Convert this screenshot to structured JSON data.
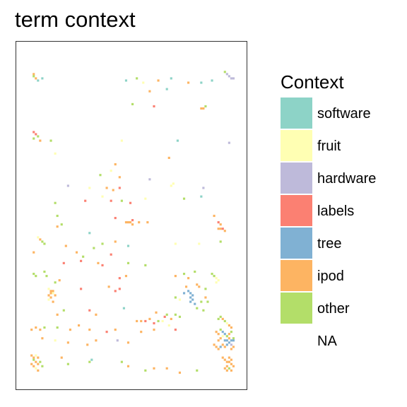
{
  "chart_data": {
    "type": "heatmap",
    "title": "term context",
    "legend": {
      "title": "Context",
      "placement": "right",
      "entries": [
        {
          "label": "software",
          "color": "#8DD3C7"
        },
        {
          "label": "fruit",
          "color": "#FFFFB3"
        },
        {
          "label": "hardware",
          "color": "#BEBADA"
        },
        {
          "label": "labels",
          "color": "#FB8072"
        },
        {
          "label": "tree",
          "color": "#80B1D3"
        },
        {
          "label": "ipod",
          "color": "#FDB462"
        },
        {
          "label": "other",
          "color": "#B3DE69"
        },
        {
          "label": "NA",
          "color": "#FFFFFF"
        }
      ]
    },
    "grid": {
      "columns": 100,
      "rows": 150
    },
    "cells": [
      [
        4,
        7,
        "ipod"
      ],
      [
        4,
        8,
        "other"
      ],
      [
        5,
        9,
        "ipod"
      ],
      [
        6,
        10,
        "software"
      ],
      [
        8,
        9,
        "software"
      ],
      [
        94,
        7,
        "hardware"
      ],
      [
        95,
        8,
        "hardware"
      ],
      [
        96,
        9,
        "hardware"
      ],
      [
        97,
        9,
        "hardware"
      ],
      [
        93,
        6,
        "other"
      ],
      [
        47,
        10,
        "software"
      ],
      [
        52,
        9,
        "other"
      ],
      [
        55,
        11,
        "fruit"
      ],
      [
        62,
        10,
        "ipod"
      ],
      [
        68,
        9,
        "software"
      ],
      [
        76,
        11,
        "ipod"
      ],
      [
        82,
        11,
        "software"
      ],
      [
        87,
        10,
        "software"
      ],
      [
        58,
        15,
        "ipod"
      ],
      [
        66,
        14,
        "software"
      ],
      [
        50,
        21,
        "other"
      ],
      [
        60,
        22,
        "labels"
      ],
      [
        82,
        23,
        "ipod"
      ],
      [
        83,
        23,
        "ipod"
      ],
      [
        84,
        22,
        "other"
      ],
      [
        4,
        34,
        "labels"
      ],
      [
        5,
        35,
        "labels"
      ],
      [
        6,
        36,
        "other"
      ],
      [
        4,
        37,
        "other"
      ],
      [
        7,
        38,
        "ipod"
      ],
      [
        12,
        38,
        "other"
      ],
      [
        45,
        38,
        "fruit"
      ],
      [
        71,
        38,
        "software"
      ],
      [
        95,
        39,
        "hardware"
      ],
      [
        14,
        44,
        "fruit"
      ],
      [
        42,
        49,
        "ipod"
      ],
      [
        67,
        46,
        "ipod"
      ],
      [
        40,
        52,
        "fruit"
      ],
      [
        35,
        54,
        "other"
      ],
      [
        44,
        55,
        "ipod"
      ],
      [
        58,
        56,
        "hardware"
      ],
      [
        20,
        59,
        "hardware"
      ],
      [
        30,
        60,
        "fruit"
      ],
      [
        38,
        60,
        "ipod"
      ],
      [
        41,
        61,
        "ipod"
      ],
      [
        44,
        60,
        "labels"
      ],
      [
        68,
        59,
        "fruit"
      ],
      [
        69,
        58,
        "fruit"
      ],
      [
        83,
        60,
        "hardware"
      ],
      [
        36,
        64,
        "fruit"
      ],
      [
        40,
        66,
        "labels"
      ],
      [
        45,
        66,
        "other"
      ],
      [
        49,
        67,
        "labels"
      ],
      [
        56,
        65,
        "fruit"
      ],
      [
        74,
        65,
        "other"
      ],
      [
        14,
        67,
        "other"
      ],
      [
        28,
        66,
        "labels"
      ],
      [
        82,
        64,
        "software"
      ],
      [
        15,
        73,
        "other"
      ],
      [
        42,
        74,
        "labels"
      ],
      [
        50,
        75,
        "labels"
      ],
      [
        88,
        73,
        "ipod"
      ],
      [
        47,
        76,
        "ipod"
      ],
      [
        48,
        76,
        "ipod"
      ],
      [
        49,
        76,
        "ipod"
      ],
      [
        50,
        77,
        "ipod"
      ],
      [
        53,
        76,
        "ipod"
      ],
      [
        57,
        76,
        "ipod"
      ],
      [
        90,
        76,
        "labels"
      ],
      [
        91,
        77,
        "ipod"
      ],
      [
        15,
        78,
        "ipod"
      ],
      [
        17,
        77,
        "other"
      ],
      [
        30,
        81,
        "software"
      ],
      [
        90,
        79,
        "ipod"
      ],
      [
        91,
        79,
        "ipod"
      ],
      [
        92,
        79,
        "labels"
      ],
      [
        93,
        80,
        "ipod"
      ],
      [
        6,
        83,
        "fruit"
      ],
      [
        7,
        84,
        "ipod"
      ],
      [
        8,
        85,
        "other"
      ],
      [
        9,
        86,
        "other"
      ],
      [
        19,
        87,
        "ipod"
      ],
      [
        42,
        85,
        "ipod"
      ],
      [
        48,
        87,
        "software"
      ],
      [
        70,
        86,
        "fruit"
      ],
      [
        81,
        86,
        "fruit"
      ],
      [
        91,
        85,
        "other"
      ],
      [
        4,
        90,
        "ipod"
      ],
      [
        26,
        94,
        "labels"
      ],
      [
        34,
        95,
        "ipod"
      ],
      [
        36,
        96,
        "labels"
      ],
      [
        56,
        96,
        "other"
      ],
      [
        48,
        95,
        "other"
      ],
      [
        44,
        102,
        "labels"
      ],
      [
        47,
        101,
        "ipod"
      ],
      [
        70,
        101,
        "ipod"
      ],
      [
        74,
        100,
        "other"
      ],
      [
        76,
        102,
        "ipod"
      ],
      [
        79,
        99,
        "other"
      ],
      [
        87,
        100,
        "other"
      ],
      [
        88,
        101,
        "other"
      ],
      [
        89,
        102,
        "fruit"
      ],
      [
        90,
        103,
        "fruit"
      ],
      [
        89,
        104,
        "fruit"
      ],
      [
        14,
        104,
        "other"
      ],
      [
        16,
        103,
        "ipod"
      ],
      [
        11,
        107,
        "fruit"
      ],
      [
        12,
        108,
        "ipod"
      ],
      [
        12,
        109,
        "ipod"
      ],
      [
        13,
        108,
        "ipod"
      ],
      [
        13,
        109,
        "fruit"
      ],
      [
        11,
        110,
        "ipod"
      ],
      [
        12,
        111,
        "ipod"
      ],
      [
        14,
        110,
        "ipod"
      ],
      [
        11,
        112,
        "fruit"
      ],
      [
        13,
        113,
        "ipod"
      ],
      [
        26,
        107,
        "labels"
      ],
      [
        39,
        106,
        "ipod"
      ],
      [
        42,
        108,
        "labels"
      ],
      [
        44,
        107,
        "labels"
      ],
      [
        75,
        106,
        "ipod"
      ],
      [
        80,
        105,
        "ipod"
      ],
      [
        81,
        106,
        "ipod"
      ],
      [
        84,
        107,
        "other"
      ],
      [
        74,
        109,
        "tree"
      ],
      [
        76,
        108,
        "tree"
      ],
      [
        77,
        109,
        "tree"
      ],
      [
        78,
        110,
        "tree"
      ],
      [
        77,
        111,
        "tree"
      ],
      [
        78,
        112,
        "tree"
      ],
      [
        77,
        113,
        "tree"
      ],
      [
        79,
        114,
        "tree"
      ],
      [
        72,
        112,
        "fruit"
      ],
      [
        70,
        111,
        "other"
      ],
      [
        84,
        111,
        "ipod"
      ],
      [
        82,
        113,
        "other"
      ],
      [
        85,
        113,
        "other"
      ],
      [
        80,
        116,
        "other"
      ],
      [
        83,
        117,
        "other"
      ],
      [
        15,
        119,
        "ipod"
      ],
      [
        18,
        117,
        "other"
      ],
      [
        30,
        117,
        "labels"
      ],
      [
        33,
        119,
        "ipod"
      ],
      [
        46,
        116,
        "software"
      ],
      [
        61,
        118,
        "ipod"
      ],
      [
        65,
        120,
        "labels"
      ],
      [
        66,
        119,
        "other"
      ],
      [
        68,
        121,
        "ipod"
      ],
      [
        70,
        119,
        "other"
      ],
      [
        72,
        120,
        "other"
      ],
      [
        52,
        122,
        "ipod"
      ],
      [
        54,
        122,
        "ipod"
      ],
      [
        56,
        122,
        "labels"
      ],
      [
        58,
        121,
        "ipod"
      ],
      [
        60,
        123,
        "labels"
      ],
      [
        62,
        122,
        "other"
      ],
      [
        64,
        122,
        "fruit"
      ],
      [
        67,
        124,
        "fruit"
      ],
      [
        90,
        121,
        "other"
      ],
      [
        91,
        120,
        "other"
      ],
      [
        92,
        121,
        "ipod"
      ],
      [
        93,
        122,
        "other"
      ],
      [
        94,
        123,
        "fruit"
      ],
      [
        95,
        124,
        "ipod"
      ],
      [
        96,
        125,
        "ipod"
      ],
      [
        3,
        126,
        "ipod"
      ],
      [
        5,
        125,
        "ipod"
      ],
      [
        7,
        126,
        "ipod"
      ],
      [
        9,
        125,
        "other"
      ],
      [
        15,
        125,
        "other"
      ],
      [
        21,
        126,
        "ipod"
      ],
      [
        25,
        124,
        "ipod"
      ],
      [
        30,
        126,
        "ipod"
      ],
      [
        38,
        127,
        "labels"
      ],
      [
        42,
        126,
        "ipod"
      ],
      [
        54,
        127,
        "ipod"
      ],
      [
        60,
        126,
        "ipod"
      ],
      [
        70,
        126,
        "labels"
      ],
      [
        89,
        127,
        "ipod"
      ],
      [
        90,
        128,
        "ipod"
      ],
      [
        91,
        126,
        "other"
      ],
      [
        92,
        127,
        "tree"
      ],
      [
        93,
        128,
        "tree"
      ],
      [
        94,
        129,
        "other"
      ],
      [
        95,
        128,
        "ipod"
      ],
      [
        96,
        127,
        "other"
      ],
      [
        92,
        129,
        "fruit"
      ],
      [
        91,
        130,
        "ipod"
      ],
      [
        90,
        131,
        "ipod"
      ],
      [
        93,
        131,
        "tree"
      ],
      [
        94,
        131,
        "tree"
      ],
      [
        95,
        130,
        "ipod"
      ],
      [
        96,
        131,
        "tree"
      ],
      [
        97,
        130,
        "other"
      ],
      [
        97,
        131,
        "tree"
      ],
      [
        8,
        130,
        "ipod"
      ],
      [
        14,
        131,
        "fruit"
      ],
      [
        20,
        132,
        "ipod"
      ],
      [
        29,
        133,
        "ipod"
      ],
      [
        33,
        131,
        "ipod"
      ],
      [
        43,
        131,
        "hardware"
      ],
      [
        48,
        132,
        "ipod"
      ],
      [
        88,
        133,
        "ipod"
      ],
      [
        89,
        134,
        "ipod"
      ],
      [
        90,
        135,
        "ipod"
      ],
      [
        91,
        134,
        "tree"
      ],
      [
        92,
        133,
        "ipod"
      ],
      [
        93,
        134,
        "ipod"
      ],
      [
        94,
        133,
        "tree"
      ],
      [
        95,
        132,
        "tree"
      ],
      [
        96,
        133,
        "hardware"
      ],
      [
        97,
        134,
        "ipod"
      ],
      [
        96,
        135,
        "ipod"
      ],
      [
        3,
        138,
        "ipod"
      ],
      [
        4,
        139,
        "ipod"
      ],
      [
        5,
        138,
        "fruit"
      ],
      [
        6,
        139,
        "ipod"
      ],
      [
        4,
        140,
        "other"
      ],
      [
        5,
        141,
        "ipod"
      ],
      [
        6,
        142,
        "ipod"
      ],
      [
        7,
        141,
        "other"
      ],
      [
        3,
        142,
        "ipod"
      ],
      [
        4,
        143,
        "ipod"
      ],
      [
        5,
        144,
        "fruit"
      ],
      [
        6,
        145,
        "ipod"
      ],
      [
        8,
        143,
        "other"
      ],
      [
        17,
        139,
        "ipod"
      ],
      [
        20,
        142,
        "other"
      ],
      [
        30,
        141,
        "other"
      ],
      [
        31,
        140,
        "software"
      ],
      [
        45,
        141,
        "other"
      ],
      [
        48,
        143,
        "ipod"
      ],
      [
        56,
        145,
        "other"
      ],
      [
        60,
        144,
        "ipod"
      ],
      [
        66,
        144,
        "ipod"
      ],
      [
        72,
        146,
        "ipod"
      ],
      [
        80,
        145,
        "other"
      ],
      [
        92,
        139,
        "ipod"
      ],
      [
        93,
        140,
        "ipod"
      ],
      [
        94,
        141,
        "ipod"
      ],
      [
        95,
        139,
        "ipod"
      ],
      [
        96,
        140,
        "ipod"
      ],
      [
        95,
        141,
        "ipod"
      ],
      [
        96,
        142,
        "ipod"
      ],
      [
        94,
        143,
        "ipod"
      ],
      [
        95,
        144,
        "other"
      ],
      [
        96,
        145,
        "ipod"
      ],
      [
        97,
        143,
        "ipod"
      ],
      [
        93,
        144,
        "ipod"
      ],
      [
        94,
        145,
        "ipod"
      ],
      [
        4,
        100,
        "other"
      ],
      [
        5,
        101,
        "other"
      ],
      [
        9,
        99,
        "other"
      ],
      [
        10,
        101,
        "other"
      ],
      [
        18,
        95,
        "labels"
      ],
      [
        24,
        90,
        "ipod"
      ],
      [
        27,
        92,
        "other"
      ],
      [
        32,
        88,
        "other"
      ],
      [
        36,
        86,
        "other"
      ],
      [
        40,
        91,
        "labels"
      ]
    ]
  }
}
